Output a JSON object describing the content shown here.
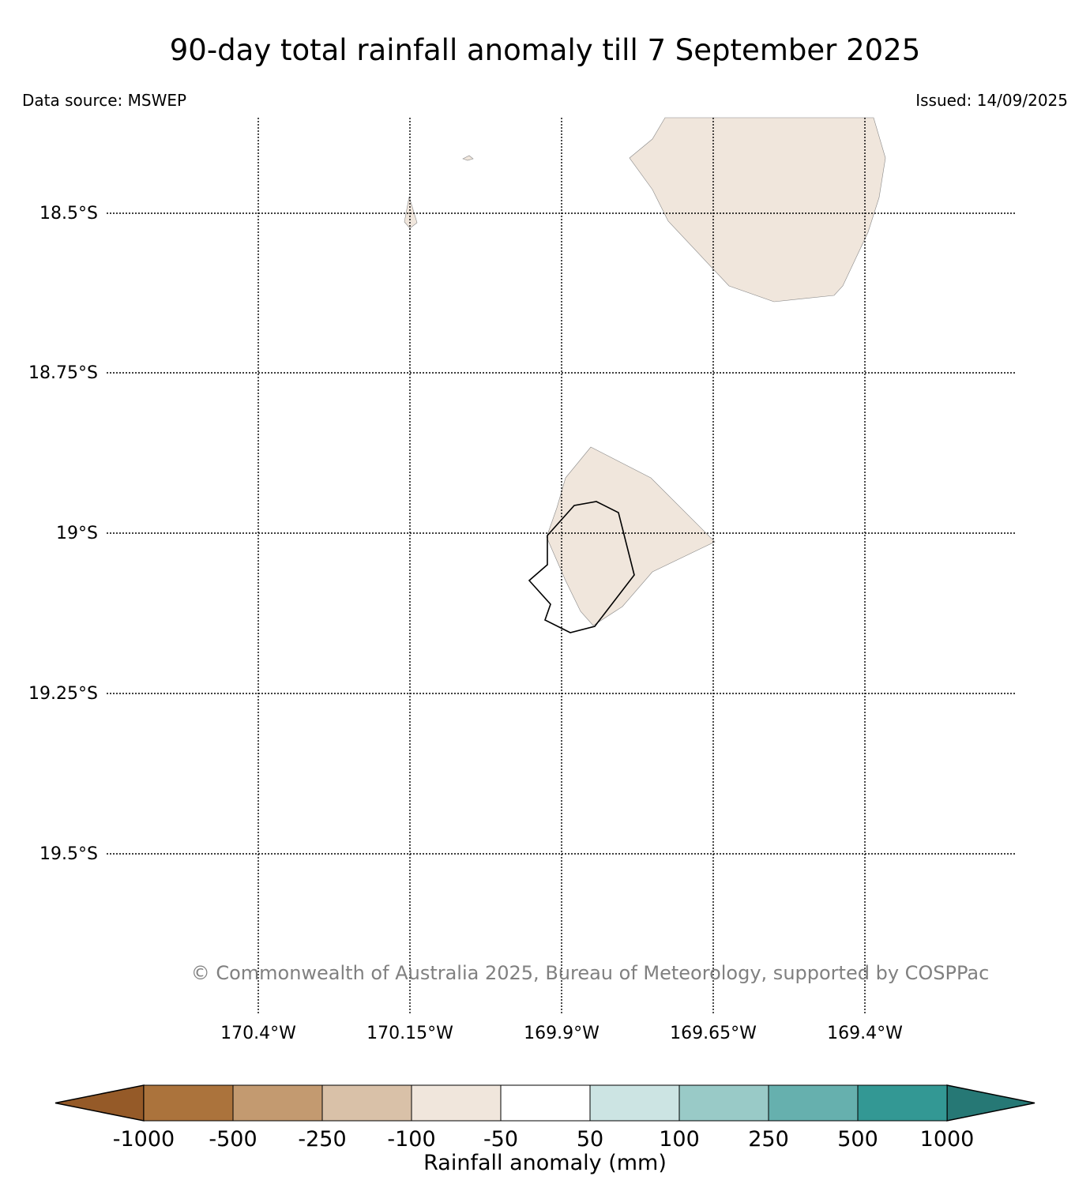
{
  "title": "90-day total rainfall anomaly till 7 September 2025",
  "data_source": "Data source: MSWEP",
  "issued": "Issued: 14/09/2025",
  "copyright": "© Commonwealth of Australia 2025, Bureau of Meteorology, supported by COSPPac",
  "map": {
    "lat_ticks": [
      "18.5°S",
      "18.75°S",
      "19°S",
      "19.25°S",
      "19.5°S"
    ],
    "lon_ticks": [
      "170.4°W",
      "170.15°W",
      "169.9°W",
      "169.65°W",
      "169.4°W"
    ],
    "anomaly_category": "-100 to -50",
    "land_outline": "Niue"
  },
  "colorbar": {
    "label": "Rainfall anomaly (mm)",
    "ticks": [
      "-1000",
      "-500",
      "-250",
      "-100",
      "-50",
      "50",
      "100",
      "250",
      "500",
      "1000"
    ],
    "colors": [
      "#955a28",
      "#ab733c",
      "#c39a70",
      "#d9c1a8",
      "#f0e6dc",
      "#ffffff",
      "#cce4e3",
      "#99cac7",
      "#66b0ae",
      "#339894",
      "#267875"
    ]
  }
}
